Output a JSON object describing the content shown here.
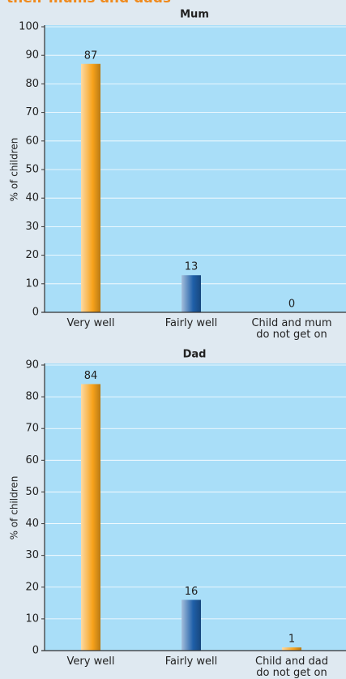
{
  "header": {
    "title": "their mums and dads"
  },
  "chart_data": [
    {
      "type": "bar",
      "title": "Mum",
      "y_label": "% of children",
      "categories": [
        "Very well",
        "Fairly well",
        "Child and mum do not get on"
      ],
      "values": [
        87,
        13,
        0
      ],
      "colors": [
        "#f7a21b",
        "#1f5fa8",
        "#f7a21b"
      ],
      "ylim": [
        0,
        100
      ],
      "yticks": [
        0,
        10,
        20,
        30,
        40,
        50,
        60,
        70,
        80,
        90,
        100
      ],
      "grid": true
    },
    {
      "type": "bar",
      "title": "Dad",
      "y_label": "% of children",
      "categories": [
        "Very well",
        "Fairly well",
        "Child and dad do not get on"
      ],
      "values": [
        84,
        16,
        1
      ],
      "colors": [
        "#f7a21b",
        "#1f5fa8",
        "#f7a21b"
      ],
      "ylim": [
        0,
        90
      ],
      "yticks": [
        0,
        10,
        20,
        30,
        40,
        50,
        60,
        70,
        80,
        90
      ],
      "grid": true
    }
  ]
}
